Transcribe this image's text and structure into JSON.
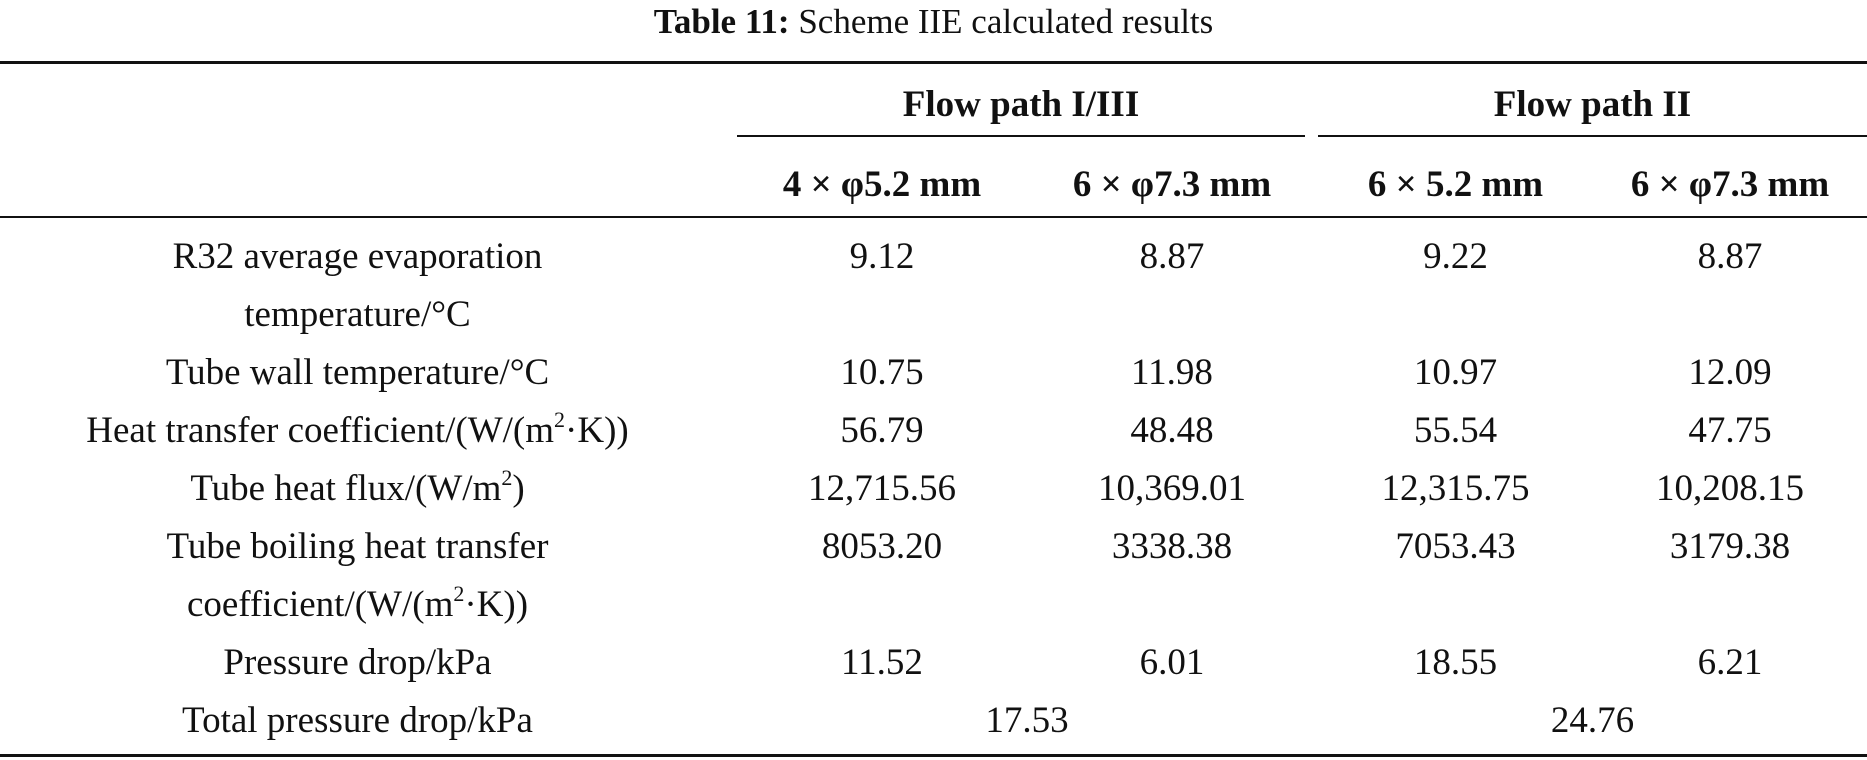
{
  "caption": {
    "label": "Table 11:",
    "text": "Scheme IIE calculated results"
  },
  "groups": [
    {
      "name": "Flow path I/III"
    },
    {
      "name": "Flow path II"
    }
  ],
  "subheaders": [
    "4 × φ5.2 mm",
    "6 × φ7.3 mm",
    "6 × 5.2 mm",
    "6 × φ7.3 mm"
  ],
  "rows": [
    {
      "label_lines": [
        "R32 average evaporation",
        "temperature/°C"
      ],
      "values": [
        "9.12",
        "8.87",
        "9.22",
        "8.87"
      ]
    },
    {
      "label_lines": [
        "Tube wall temperature/°C"
      ],
      "values": [
        "10.75",
        "11.98",
        "10.97",
        "12.09"
      ]
    },
    {
      "label_pre": "Heat transfer coefficient/(W/(m",
      "label_sup": "2",
      "label_post": "·K))",
      "values": [
        "56.79",
        "48.48",
        "55.54",
        "47.75"
      ]
    },
    {
      "label_pre": "Tube heat flux/(W/m",
      "label_sup": "2",
      "label_post": ")",
      "values": [
        "12,715.56",
        "10,369.01",
        "12,315.75",
        "10,208.15"
      ]
    },
    {
      "label_line1": "Tube boiling heat transfer",
      "label_pre": "coefficient/(W/(m",
      "label_sup": "2",
      "label_post": "·K))",
      "values": [
        "8053.20",
        "3338.38",
        "7053.43",
        "3179.38"
      ]
    },
    {
      "label_lines": [
        "Pressure drop/kPa"
      ],
      "values": [
        "11.52",
        "6.01",
        "18.55",
        "6.21"
      ]
    },
    {
      "label_lines": [
        "Total pressure drop/kPa"
      ],
      "spans": [
        "17.53",
        "24.76"
      ]
    }
  ]
}
